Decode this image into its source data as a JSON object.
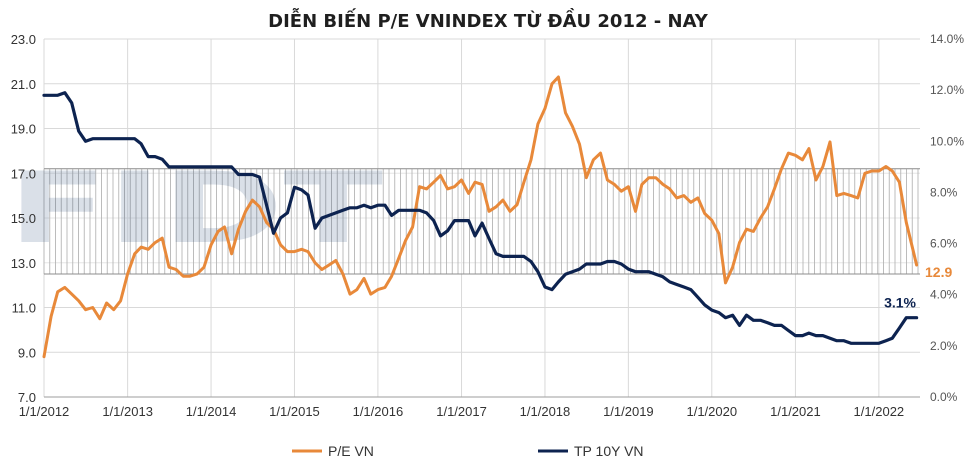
{
  "chart_data": {
    "type": "line",
    "title": "DIỄN BIẾN P/E VNINDEX TỪ ĐẦU 2012 - NAY",
    "x_tick_labels": [
      "1/1/2012",
      "1/1/2013",
      "1/1/2014",
      "1/1/2015",
      "1/1/2016",
      "1/1/2017",
      "1/1/2018",
      "1/1/2019",
      "1/1/2020",
      "1/1/2021",
      "1/1/2022"
    ],
    "xlim": [
      "2012-01-01",
      "2022-06-30"
    ],
    "y_left": {
      "ylim": [
        7.0,
        23.0
      ],
      "tick_labels": [
        "7.0",
        "9.0",
        "11.0",
        "13.0",
        "15.0",
        "17.0",
        "19.0",
        "21.0",
        "23.0"
      ]
    },
    "y_right": {
      "ylim": [
        0,
        14
      ],
      "tick_labels": [
        "0.0%",
        "2.0%",
        "4.0%",
        "6.0%",
        "8.0%",
        "10.0%",
        "12.0%",
        "14.0%"
      ]
    },
    "band": {
      "axis": "left",
      "range": [
        12.5,
        17.2
      ]
    },
    "grid": true,
    "legend_position": "bottom",
    "series": [
      {
        "name": "P/E VN",
        "axis": "left",
        "color": "#e8893a",
        "end_label": "12.9",
        "points": [
          [
            "2012-01-01",
            8.8
          ],
          [
            "2012-02-01",
            10.6
          ],
          [
            "2012-03-01",
            11.7
          ],
          [
            "2012-04-01",
            11.9
          ],
          [
            "2012-05-01",
            11.6
          ],
          [
            "2012-06-01",
            11.3
          ],
          [
            "2012-07-01",
            10.9
          ],
          [
            "2012-08-01",
            11.0
          ],
          [
            "2012-09-01",
            10.5
          ],
          [
            "2012-10-01",
            11.2
          ],
          [
            "2012-11-01",
            10.9
          ],
          [
            "2012-12-01",
            11.3
          ],
          [
            "2013-01-01",
            12.5
          ],
          [
            "2013-02-01",
            13.4
          ],
          [
            "2013-03-01",
            13.7
          ],
          [
            "2013-04-01",
            13.6
          ],
          [
            "2013-05-01",
            13.9
          ],
          [
            "2013-06-01",
            14.1
          ],
          [
            "2013-07-01",
            12.8
          ],
          [
            "2013-08-01",
            12.7
          ],
          [
            "2013-09-01",
            12.4
          ],
          [
            "2013-10-01",
            12.4
          ],
          [
            "2013-11-01",
            12.5
          ],
          [
            "2013-12-01",
            12.8
          ],
          [
            "2014-01-01",
            13.8
          ],
          [
            "2014-02-01",
            14.4
          ],
          [
            "2014-03-01",
            14.6
          ],
          [
            "2014-04-01",
            13.4
          ],
          [
            "2014-05-01",
            14.5
          ],
          [
            "2014-06-01",
            15.3
          ],
          [
            "2014-07-01",
            15.8
          ],
          [
            "2014-08-01",
            15.5
          ],
          [
            "2014-09-01",
            14.8
          ],
          [
            "2014-10-01",
            14.5
          ],
          [
            "2014-11-01",
            13.8
          ],
          [
            "2014-12-01",
            13.5
          ],
          [
            "2015-01-01",
            13.5
          ],
          [
            "2015-02-01",
            13.6
          ],
          [
            "2015-03-01",
            13.5
          ],
          [
            "2015-04-01",
            13.0
          ],
          [
            "2015-05-01",
            12.7
          ],
          [
            "2015-06-01",
            12.9
          ],
          [
            "2015-07-01",
            13.1
          ],
          [
            "2015-08-01",
            12.5
          ],
          [
            "2015-09-01",
            11.6
          ],
          [
            "2015-10-01",
            11.8
          ],
          [
            "2015-11-01",
            12.3
          ],
          [
            "2015-12-01",
            11.6
          ],
          [
            "2016-01-01",
            11.8
          ],
          [
            "2016-02-01",
            11.9
          ],
          [
            "2016-03-01",
            12.4
          ],
          [
            "2016-04-01",
            13.2
          ],
          [
            "2016-05-01",
            14.0
          ],
          [
            "2016-06-01",
            14.6
          ],
          [
            "2016-07-01",
            16.4
          ],
          [
            "2016-08-01",
            16.3
          ],
          [
            "2016-09-01",
            16.6
          ],
          [
            "2016-10-01",
            16.9
          ],
          [
            "2016-11-01",
            16.3
          ],
          [
            "2016-12-01",
            16.4
          ],
          [
            "2017-01-01",
            16.7
          ],
          [
            "2017-02-01",
            16.1
          ],
          [
            "2017-03-01",
            16.6
          ],
          [
            "2017-04-01",
            16.5
          ],
          [
            "2017-05-01",
            15.3
          ],
          [
            "2017-06-01",
            15.5
          ],
          [
            "2017-07-01",
            15.8
          ],
          [
            "2017-08-01",
            15.3
          ],
          [
            "2017-09-01",
            15.6
          ],
          [
            "2017-10-01",
            16.6
          ],
          [
            "2017-11-01",
            17.6
          ],
          [
            "2017-12-01",
            19.2
          ],
          [
            "2018-01-01",
            19.9
          ],
          [
            "2018-02-01",
            21.0
          ],
          [
            "2018-03-01",
            21.3
          ],
          [
            "2018-04-01",
            19.7
          ],
          [
            "2018-05-01",
            19.1
          ],
          [
            "2018-06-01",
            18.3
          ],
          [
            "2018-07-01",
            16.8
          ],
          [
            "2018-08-01",
            17.6
          ],
          [
            "2018-09-01",
            17.9
          ],
          [
            "2018-10-01",
            16.7
          ],
          [
            "2018-11-01",
            16.5
          ],
          [
            "2018-12-01",
            16.2
          ],
          [
            "2019-01-01",
            16.4
          ],
          [
            "2019-02-01",
            15.3
          ],
          [
            "2019-03-01",
            16.5
          ],
          [
            "2019-04-01",
            16.8
          ],
          [
            "2019-05-01",
            16.8
          ],
          [
            "2019-06-01",
            16.5
          ],
          [
            "2019-07-01",
            16.3
          ],
          [
            "2019-08-01",
            15.9
          ],
          [
            "2019-09-01",
            16.0
          ],
          [
            "2019-10-01",
            15.7
          ],
          [
            "2019-11-01",
            15.9
          ],
          [
            "2019-12-01",
            15.2
          ],
          [
            "2020-01-01",
            14.9
          ],
          [
            "2020-02-01",
            14.3
          ],
          [
            "2020-03-01",
            12.1
          ],
          [
            "2020-04-01",
            12.8
          ],
          [
            "2020-05-01",
            13.9
          ],
          [
            "2020-06-01",
            14.5
          ],
          [
            "2020-07-01",
            14.4
          ],
          [
            "2020-08-01",
            15.0
          ],
          [
            "2020-09-01",
            15.5
          ],
          [
            "2020-10-01",
            16.3
          ],
          [
            "2020-11-01",
            17.2
          ],
          [
            "2020-12-01",
            17.9
          ],
          [
            "2021-01-01",
            17.8
          ],
          [
            "2021-02-01",
            17.6
          ],
          [
            "2021-03-01",
            18.1
          ],
          [
            "2021-04-01",
            16.7
          ],
          [
            "2021-05-01",
            17.3
          ],
          [
            "2021-06-01",
            18.4
          ],
          [
            "2021-07-01",
            16.0
          ],
          [
            "2021-08-01",
            16.1
          ],
          [
            "2021-09-01",
            16.0
          ],
          [
            "2021-10-01",
            15.9
          ],
          [
            "2021-11-01",
            17.0
          ],
          [
            "2021-12-01",
            17.1
          ],
          [
            "2022-01-01",
            17.1
          ],
          [
            "2022-02-01",
            17.3
          ],
          [
            "2022-03-01",
            17.1
          ],
          [
            "2022-04-01",
            16.6
          ],
          [
            "2022-05-01",
            14.8
          ],
          [
            "2022-06-01",
            13.5
          ],
          [
            "2022-06-15",
            12.9
          ]
        ]
      },
      {
        "name": "TP 10Y VN",
        "axis": "right",
        "color": "#0d2350",
        "end_label": "3.1%",
        "points": [
          [
            "2012-01-01",
            11.8
          ],
          [
            "2012-03-01",
            11.8
          ],
          [
            "2012-04-01",
            11.9
          ],
          [
            "2012-05-01",
            11.5
          ],
          [
            "2012-06-01",
            10.4
          ],
          [
            "2012-07-01",
            10.0
          ],
          [
            "2012-08-01",
            10.1
          ],
          [
            "2012-09-01",
            10.1
          ],
          [
            "2012-10-01",
            10.1
          ],
          [
            "2012-11-01",
            10.1
          ],
          [
            "2012-12-01",
            10.1
          ],
          [
            "2013-01-01",
            10.1
          ],
          [
            "2013-02-01",
            10.1
          ],
          [
            "2013-03-01",
            9.9
          ],
          [
            "2013-04-01",
            9.4
          ],
          [
            "2013-05-01",
            9.4
          ],
          [
            "2013-06-01",
            9.3
          ],
          [
            "2013-07-01",
            9.0
          ],
          [
            "2013-08-01",
            9.0
          ],
          [
            "2013-09-01",
            9.0
          ],
          [
            "2013-10-01",
            9.0
          ],
          [
            "2013-11-01",
            9.0
          ],
          [
            "2013-12-01",
            9.0
          ],
          [
            "2014-01-01",
            9.0
          ],
          [
            "2014-02-01",
            9.0
          ],
          [
            "2014-03-01",
            9.0
          ],
          [
            "2014-04-01",
            9.0
          ],
          [
            "2014-05-01",
            8.7
          ],
          [
            "2014-06-01",
            8.7
          ],
          [
            "2014-07-01",
            8.7
          ],
          [
            "2014-08-01",
            8.6
          ],
          [
            "2014-09-01",
            7.5
          ],
          [
            "2014-10-01",
            6.4
          ],
          [
            "2014-11-01",
            7.0
          ],
          [
            "2014-12-01",
            7.2
          ],
          [
            "2015-01-01",
            8.2
          ],
          [
            "2015-02-01",
            8.1
          ],
          [
            "2015-03-01",
            7.9
          ],
          [
            "2015-04-01",
            6.6
          ],
          [
            "2015-05-01",
            7.0
          ],
          [
            "2015-06-01",
            7.1
          ],
          [
            "2015-07-01",
            7.2
          ],
          [
            "2015-08-01",
            7.3
          ],
          [
            "2015-09-01",
            7.4
          ],
          [
            "2015-10-01",
            7.4
          ],
          [
            "2015-11-01",
            7.5
          ],
          [
            "2015-12-01",
            7.4
          ],
          [
            "2016-01-01",
            7.5
          ],
          [
            "2016-02-01",
            7.5
          ],
          [
            "2016-03-01",
            7.1
          ],
          [
            "2016-04-01",
            7.3
          ],
          [
            "2016-05-01",
            7.3
          ],
          [
            "2016-06-01",
            7.3
          ],
          [
            "2016-07-01",
            7.3
          ],
          [
            "2016-08-01",
            7.2
          ],
          [
            "2016-09-01",
            6.9
          ],
          [
            "2016-10-01",
            6.3
          ],
          [
            "2016-11-01",
            6.5
          ],
          [
            "2016-12-01",
            6.9
          ],
          [
            "2017-01-01",
            6.9
          ],
          [
            "2017-02-01",
            6.9
          ],
          [
            "2017-03-01",
            6.3
          ],
          [
            "2017-04-01",
            6.8
          ],
          [
            "2017-05-01",
            6.2
          ],
          [
            "2017-06-01",
            5.6
          ],
          [
            "2017-07-01",
            5.5
          ],
          [
            "2017-08-01",
            5.5
          ],
          [
            "2017-09-01",
            5.5
          ],
          [
            "2017-10-01",
            5.5
          ],
          [
            "2017-11-01",
            5.3
          ],
          [
            "2017-12-01",
            4.9
          ],
          [
            "2018-01-01",
            4.3
          ],
          [
            "2018-02-01",
            4.2
          ],
          [
            "2018-03-01",
            4.5
          ],
          [
            "2018-04-01",
            4.8
          ],
          [
            "2018-05-01",
            4.9
          ],
          [
            "2018-06-01",
            5.0
          ],
          [
            "2018-07-01",
            5.2
          ],
          [
            "2018-08-01",
            5.2
          ],
          [
            "2018-09-01",
            5.2
          ],
          [
            "2018-10-01",
            5.3
          ],
          [
            "2018-11-01",
            5.3
          ],
          [
            "2018-12-01",
            5.2
          ],
          [
            "2019-01-01",
            5.0
          ],
          [
            "2019-02-01",
            4.9
          ],
          [
            "2019-03-01",
            4.9
          ],
          [
            "2019-04-01",
            4.9
          ],
          [
            "2019-05-01",
            4.8
          ],
          [
            "2019-06-01",
            4.7
          ],
          [
            "2019-07-01",
            4.5
          ],
          [
            "2019-08-01",
            4.4
          ],
          [
            "2019-09-01",
            4.3
          ],
          [
            "2019-10-01",
            4.2
          ],
          [
            "2019-11-01",
            3.9
          ],
          [
            "2019-12-01",
            3.6
          ],
          [
            "2020-01-01",
            3.4
          ],
          [
            "2020-02-01",
            3.3
          ],
          [
            "2020-03-01",
            3.1
          ],
          [
            "2020-04-01",
            3.2
          ],
          [
            "2020-05-01",
            2.8
          ],
          [
            "2020-06-01",
            3.2
          ],
          [
            "2020-07-01",
            3.0
          ],
          [
            "2020-08-01",
            3.0
          ],
          [
            "2020-09-01",
            2.9
          ],
          [
            "2020-10-01",
            2.8
          ],
          [
            "2020-11-01",
            2.8
          ],
          [
            "2020-12-01",
            2.6
          ],
          [
            "2021-01-01",
            2.4
          ],
          [
            "2021-02-01",
            2.4
          ],
          [
            "2021-03-01",
            2.5
          ],
          [
            "2021-04-01",
            2.4
          ],
          [
            "2021-05-01",
            2.4
          ],
          [
            "2021-06-01",
            2.3
          ],
          [
            "2021-07-01",
            2.2
          ],
          [
            "2021-08-01",
            2.2
          ],
          [
            "2021-09-01",
            2.1
          ],
          [
            "2021-10-01",
            2.1
          ],
          [
            "2021-11-01",
            2.1
          ],
          [
            "2021-12-01",
            2.1
          ],
          [
            "2022-01-01",
            2.1
          ],
          [
            "2022-02-01",
            2.2
          ],
          [
            "2022-03-01",
            2.3
          ],
          [
            "2022-04-01",
            2.7
          ],
          [
            "2022-05-01",
            3.1
          ],
          [
            "2022-06-15",
            3.1
          ]
        ]
      }
    ]
  }
}
